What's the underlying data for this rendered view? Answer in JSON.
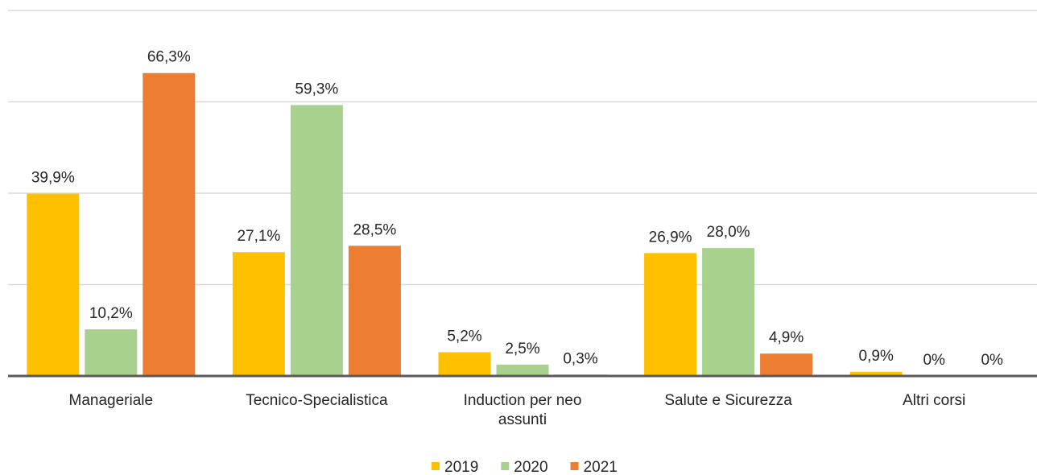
{
  "chart_data": {
    "type": "bar",
    "categories": [
      "Manageriale",
      "Tecnico-Specialistica",
      "Induction per neo assunti",
      "Salute e Sicurezza",
      "Altri corsi"
    ],
    "series": [
      {
        "name": "2019",
        "color": "#FFC000",
        "values": [
          39.9,
          27.1,
          5.2,
          26.9,
          0.9
        ],
        "value_labels": [
          "39,9%",
          "27,1%",
          "5,2%",
          "26,9%",
          "0,9%"
        ]
      },
      {
        "name": "2020",
        "color": "#A9D18E",
        "values": [
          10.2,
          59.3,
          2.5,
          28.0,
          0
        ],
        "value_labels": [
          "10,2%",
          "59,3%",
          "2,5%",
          "28,0%",
          "0%"
        ]
      },
      {
        "name": "2021",
        "color": "#ED7D31",
        "values": [
          66.3,
          28.5,
          0.3,
          4.9,
          0
        ],
        "value_labels": [
          "66,3%",
          "28,5%",
          "0,3%",
          "4,9%",
          "0%"
        ]
      }
    ],
    "ylim": [
      0,
      80
    ],
    "yticks": [
      0,
      20,
      40,
      60,
      80
    ],
    "grid": true,
    "legend": "bottom"
  }
}
